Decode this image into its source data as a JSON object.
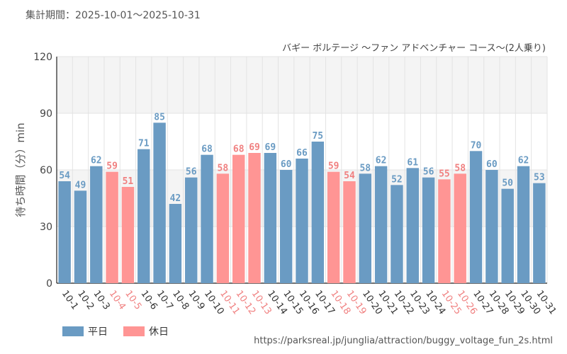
{
  "header": {
    "period": "集計期間：2025-10-01〜2025-10-31"
  },
  "legend": {
    "weekday": "平日",
    "holiday": "休日"
  },
  "footer": {
    "source": "https://parksreal.jp/junglia/attraction/buggy_voltage_fun_2s.html"
  },
  "colors": {
    "weekday": "#6a9bc3",
    "holiday": "#ff9594",
    "holiday_text": "#f08080",
    "grid": "#e3e3e3",
    "band": "#f4f4f4"
  },
  "chart_data": {
    "type": "bar",
    "title": "バギー ボルテージ 〜ファン アドベンチャー コース〜(2人乗り)",
    "ylabel": "待ち時間（分）min",
    "xlabel": "",
    "ylim": [
      0,
      120
    ],
    "yticks": [
      0,
      30,
      60,
      90,
      120
    ],
    "categories": [
      "10-1",
      "10-2",
      "10-3",
      "10-4",
      "10-5",
      "10-6",
      "10-7",
      "10-8",
      "10-9",
      "10-10",
      "10-11",
      "10-12",
      "10-13",
      "10-14",
      "10-15",
      "10-16",
      "10-17",
      "10-18",
      "10-19",
      "10-20",
      "10-21",
      "10-22",
      "10-23",
      "10-24",
      "10-25",
      "10-26",
      "10-27",
      "10-28",
      "10-29",
      "10-30",
      "10-31"
    ],
    "values": [
      54,
      49,
      62,
      59,
      51,
      71,
      85,
      42,
      56,
      68,
      58,
      68,
      69,
      69,
      60,
      66,
      75,
      59,
      54,
      58,
      62,
      52,
      61,
      56,
      55,
      58,
      70,
      60,
      50,
      62,
      53
    ],
    "day_type": [
      "weekday",
      "weekday",
      "weekday",
      "holiday",
      "holiday",
      "weekday",
      "weekday",
      "weekday",
      "weekday",
      "weekday",
      "holiday",
      "holiday",
      "holiday",
      "weekday",
      "weekday",
      "weekday",
      "weekday",
      "holiday",
      "holiday",
      "weekday",
      "weekday",
      "weekday",
      "weekday",
      "weekday",
      "holiday",
      "holiday",
      "weekday",
      "weekday",
      "weekday",
      "weekday",
      "weekday"
    ],
    "grid": true,
    "legend_position": "bottom-left"
  }
}
